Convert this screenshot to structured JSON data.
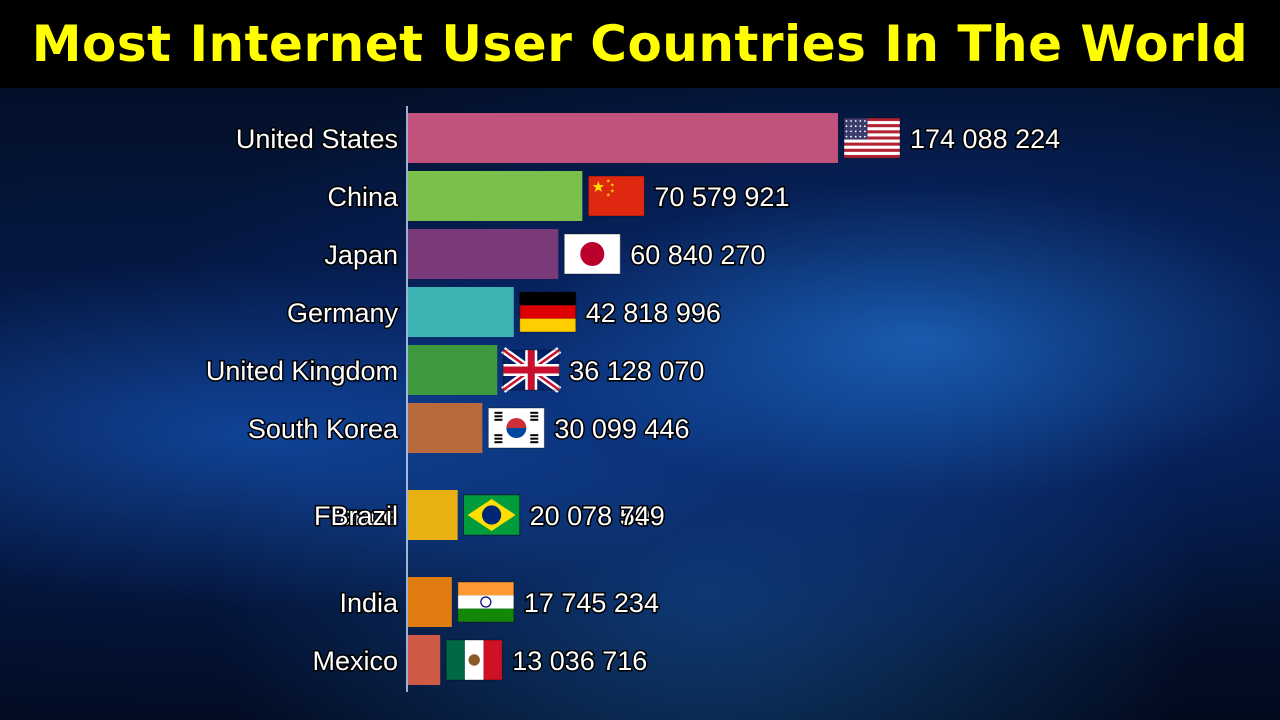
{
  "title": "Most Internet User Countries In The World",
  "colors": {
    "title": "#ffff00",
    "title_bg": "#000000"
  },
  "chart_data": {
    "type": "bar",
    "orientation": "horizontal",
    "title": "Most Internet User Countries In The World",
    "xlabel": "",
    "ylabel": "",
    "grid": false,
    "legend": "none",
    "xlim": [
      0,
      174088224
    ],
    "categories": [
      "United States",
      "China",
      "Japan",
      "Germany",
      "United Kingdom",
      "South Korea",
      "France",
      "Brazil",
      "India",
      "Mexico"
    ],
    "values": [
      174088224,
      70579921,
      60840270,
      42818996,
      36128070,
      30099446,
      20078509,
      20078749,
      17745234,
      13036716
    ],
    "value_labels": [
      "174 088 224",
      "70 579 921",
      "60 840 270",
      "42 818 996",
      "36 128 070",
      "30 099 446",
      "20 078 509",
      "20 078 749",
      "17 745 234",
      "13 036 716"
    ],
    "rank": [
      1,
      2,
      3,
      4,
      5,
      6,
      7.5,
      7.5,
      9,
      10
    ],
    "bar_colors": [
      "#c0527c",
      "#7cc04c",
      "#7a3a7a",
      "#3cb4b4",
      "#3f9a3f",
      "#b86a3c",
      "#e08b1a",
      "#e8b010",
      "#e07c10",
      "#d05a48"
    ],
    "flags": [
      "us-flag",
      "cn-flag",
      "jp-flag",
      "de-flag",
      "gb-flag",
      "kr-flag",
      "fr-flag",
      "br-flag",
      "in-flag",
      "mx-flag"
    ]
  }
}
